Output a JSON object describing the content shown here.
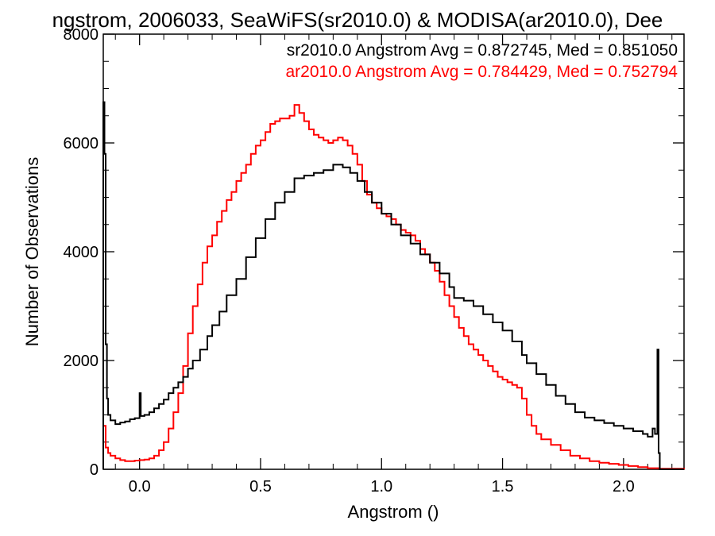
{
  "chart_data": {
    "type": "line",
    "title": "ngstrom, 2006033, SeaWiFS(sr2010.0) & MODISA(ar2010.0), Dee",
    "xlabel": "Angstrom ()",
    "ylabel": "Number of Observations",
    "xlim": [
      -0.15,
      2.25
    ],
    "ylim": [
      0,
      8000
    ],
    "x_ticks": [
      {
        "value": 0.0,
        "label": "0.0"
      },
      {
        "value": 0.5,
        "label": "0.5"
      },
      {
        "value": 1.0,
        "label": "1.0"
      },
      {
        "value": 1.5,
        "label": "1.5"
      },
      {
        "value": 2.0,
        "label": "2.0"
      }
    ],
    "y_ticks": [
      {
        "value": 0,
        "label": "0"
      },
      {
        "value": 2000,
        "label": "2000"
      },
      {
        "value": 4000,
        "label": "4000"
      },
      {
        "value": 6000,
        "label": "6000"
      },
      {
        "value": 8000,
        "label": "8000"
      }
    ],
    "grid": false,
    "step": true,
    "annotations": [
      {
        "text": "sr2010.0 Angstrom Avg = 0.872745, Med = 0.851050",
        "color": "#000000"
      },
      {
        "text": "ar2010.0 Angstrom Avg = 0.784429, Med = 0.752794",
        "color": "#ff0000"
      }
    ],
    "series": [
      {
        "color": "#000000",
        "points": [
          [
            -0.16,
            0
          ],
          [
            -0.155,
            4300
          ],
          [
            -0.15,
            6750
          ],
          [
            -0.145,
            5800
          ],
          [
            -0.14,
            2300
          ],
          [
            -0.135,
            1300
          ],
          [
            -0.13,
            1000
          ],
          [
            -0.12,
            900
          ],
          [
            -0.1,
            830
          ],
          [
            -0.08,
            860
          ],
          [
            -0.06,
            880
          ],
          [
            -0.04,
            920
          ],
          [
            -0.02,
            940
          ],
          [
            0.0,
            970
          ],
          [
            0.0,
            1400
          ],
          [
            0.005,
            980
          ],
          [
            0.02,
            1000
          ],
          [
            0.04,
            1050
          ],
          [
            0.06,
            1120
          ],
          [
            0.08,
            1200
          ],
          [
            0.1,
            1280
          ],
          [
            0.12,
            1400
          ],
          [
            0.14,
            1500
          ],
          [
            0.16,
            1600
          ],
          [
            0.18,
            1700
          ],
          [
            0.2,
            1850
          ],
          [
            0.22,
            2000
          ],
          [
            0.25,
            2200
          ],
          [
            0.28,
            2450
          ],
          [
            0.3,
            2650
          ],
          [
            0.33,
            2900
          ],
          [
            0.36,
            3200
          ],
          [
            0.4,
            3500
          ],
          [
            0.44,
            3900
          ],
          [
            0.48,
            4250
          ],
          [
            0.52,
            4600
          ],
          [
            0.56,
            4900
          ],
          [
            0.6,
            5100
          ],
          [
            0.64,
            5350
          ],
          [
            0.68,
            5400
          ],
          [
            0.72,
            5450
          ],
          [
            0.76,
            5500
          ],
          [
            0.8,
            5600
          ],
          [
            0.84,
            5550
          ],
          [
            0.87,
            5450
          ],
          [
            0.9,
            5300
          ],
          [
            0.93,
            5100
          ],
          [
            0.96,
            4900
          ],
          [
            1.0,
            4700
          ],
          [
            1.04,
            4500
          ],
          [
            1.08,
            4300
          ],
          [
            1.12,
            4150
          ],
          [
            1.16,
            3950
          ],
          [
            1.2,
            3800
          ],
          [
            1.24,
            3600
          ],
          [
            1.28,
            3350
          ],
          [
            1.3,
            3150
          ],
          [
            1.34,
            3100
          ],
          [
            1.38,
            3000
          ],
          [
            1.42,
            2850
          ],
          [
            1.46,
            2700
          ],
          [
            1.5,
            2550
          ],
          [
            1.54,
            2350
          ],
          [
            1.58,
            2100
          ],
          [
            1.6,
            1950
          ],
          [
            1.64,
            1750
          ],
          [
            1.68,
            1550
          ],
          [
            1.72,
            1350
          ],
          [
            1.76,
            1200
          ],
          [
            1.8,
            1050
          ],
          [
            1.84,
            950
          ],
          [
            1.88,
            900
          ],
          [
            1.92,
            850
          ],
          [
            1.96,
            800
          ],
          [
            2.0,
            750
          ],
          [
            2.04,
            700
          ],
          [
            2.08,
            650
          ],
          [
            2.1,
            600
          ],
          [
            2.12,
            750
          ],
          [
            2.13,
            650
          ],
          [
            2.14,
            2200
          ],
          [
            2.145,
            300
          ],
          [
            2.15,
            0
          ],
          [
            2.25,
            0
          ]
        ]
      },
      {
        "color": "#ff0000",
        "points": [
          [
            -0.16,
            650
          ],
          [
            -0.15,
            800
          ],
          [
            -0.14,
            400
          ],
          [
            -0.13,
            300
          ],
          [
            -0.12,
            250
          ],
          [
            -0.1,
            200
          ],
          [
            -0.08,
            170
          ],
          [
            -0.06,
            150
          ],
          [
            -0.04,
            150
          ],
          [
            -0.02,
            160
          ],
          [
            0.0,
            170
          ],
          [
            0.02,
            180
          ],
          [
            0.04,
            200
          ],
          [
            0.06,
            250
          ],
          [
            0.08,
            350
          ],
          [
            0.1,
            500
          ],
          [
            0.12,
            750
          ],
          [
            0.14,
            1050
          ],
          [
            0.16,
            1400
          ],
          [
            0.18,
            1900
          ],
          [
            0.2,
            2500
          ],
          [
            0.22,
            3000
          ],
          [
            0.24,
            3400
          ],
          [
            0.26,
            3800
          ],
          [
            0.28,
            4100
          ],
          [
            0.3,
            4300
          ],
          [
            0.32,
            4550
          ],
          [
            0.34,
            4750
          ],
          [
            0.36,
            4950
          ],
          [
            0.38,
            5100
          ],
          [
            0.4,
            5300
          ],
          [
            0.42,
            5450
          ],
          [
            0.44,
            5600
          ],
          [
            0.46,
            5800
          ],
          [
            0.48,
            5950
          ],
          [
            0.5,
            6050
          ],
          [
            0.52,
            6200
          ],
          [
            0.54,
            6350
          ],
          [
            0.56,
            6400
          ],
          [
            0.58,
            6450
          ],
          [
            0.6,
            6450
          ],
          [
            0.62,
            6500
          ],
          [
            0.64,
            6700
          ],
          [
            0.66,
            6550
          ],
          [
            0.68,
            6400
          ],
          [
            0.7,
            6250
          ],
          [
            0.72,
            6150
          ],
          [
            0.74,
            6100
          ],
          [
            0.76,
            6050
          ],
          [
            0.78,
            6000
          ],
          [
            0.8,
            6050
          ],
          [
            0.82,
            6100
          ],
          [
            0.84,
            6050
          ],
          [
            0.86,
            5950
          ],
          [
            0.88,
            5800
          ],
          [
            0.9,
            5600
          ],
          [
            0.92,
            5300
          ],
          [
            0.94,
            5050
          ],
          [
            0.96,
            4900
          ],
          [
            0.98,
            4800
          ],
          [
            1.0,
            4700
          ],
          [
            1.02,
            4650
          ],
          [
            1.04,
            4600
          ],
          [
            1.06,
            4500
          ],
          [
            1.08,
            4400
          ],
          [
            1.1,
            4350
          ],
          [
            1.12,
            4300
          ],
          [
            1.14,
            4200
          ],
          [
            1.16,
            4050
          ],
          [
            1.18,
            3950
          ],
          [
            1.2,
            3800
          ],
          [
            1.22,
            3650
          ],
          [
            1.24,
            3450
          ],
          [
            1.26,
            3200
          ],
          [
            1.28,
            3000
          ],
          [
            1.3,
            2800
          ],
          [
            1.32,
            2600
          ],
          [
            1.34,
            2450
          ],
          [
            1.36,
            2300
          ],
          [
            1.38,
            2200
          ],
          [
            1.4,
            2100
          ],
          [
            1.42,
            2000
          ],
          [
            1.44,
            1900
          ],
          [
            1.46,
            1800
          ],
          [
            1.48,
            1700
          ],
          [
            1.5,
            1650
          ],
          [
            1.52,
            1600
          ],
          [
            1.54,
            1550
          ],
          [
            1.56,
            1500
          ],
          [
            1.58,
            1300
          ],
          [
            1.6,
            1000
          ],
          [
            1.62,
            800
          ],
          [
            1.64,
            650
          ],
          [
            1.66,
            550
          ],
          [
            1.7,
            450
          ],
          [
            1.74,
            350
          ],
          [
            1.78,
            250
          ],
          [
            1.82,
            200
          ],
          [
            1.86,
            150
          ],
          [
            1.9,
            120
          ],
          [
            1.94,
            100
          ],
          [
            1.98,
            80
          ],
          [
            2.02,
            60
          ],
          [
            2.06,
            40
          ],
          [
            2.1,
            20
          ],
          [
            2.15,
            10
          ],
          [
            2.25,
            0
          ]
        ]
      }
    ]
  }
}
